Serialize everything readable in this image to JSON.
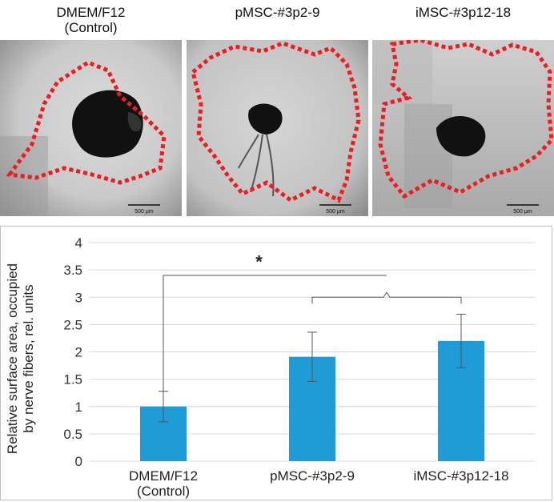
{
  "panels": [
    {
      "title_line1": "DMEM/F12",
      "title_line2": "(Control)",
      "scale_bar": "500 μm"
    },
    {
      "title_line1": "pMSC-#3p2-9",
      "title_line2": "",
      "scale_bar": "500 μm"
    },
    {
      "title_line1": "iMSC-#3p12-18",
      "title_line2": "",
      "scale_bar": "500 μm"
    }
  ],
  "colors": {
    "bar": "#1f9bd7",
    "outline": "#ee1c1c",
    "grid": "#d9d9d9"
  },
  "chart_data": {
    "type": "bar",
    "categories": [
      [
        "DMEM/F12",
        "(Control)"
      ],
      [
        "pMSC-#3p2-9"
      ],
      [
        "iMSC-#3p12-18"
      ]
    ],
    "values": [
      1.0,
      1.91,
      2.2
    ],
    "errors": [
      0.28,
      0.45,
      0.49
    ],
    "ylabel_line1": "Relative surface area, occupied",
    "ylabel_line2": "by nerve fibers, rel. units",
    "ylim": [
      0,
      4
    ],
    "yticks": [
      "0",
      "0.5",
      "1",
      "1.5",
      "2",
      "2.5",
      "3",
      "3.5",
      "4"
    ],
    "ytick_values": [
      0,
      0.5,
      1,
      1.5,
      2,
      2.5,
      3,
      3.5,
      4
    ],
    "grid": true,
    "significance": "*"
  }
}
